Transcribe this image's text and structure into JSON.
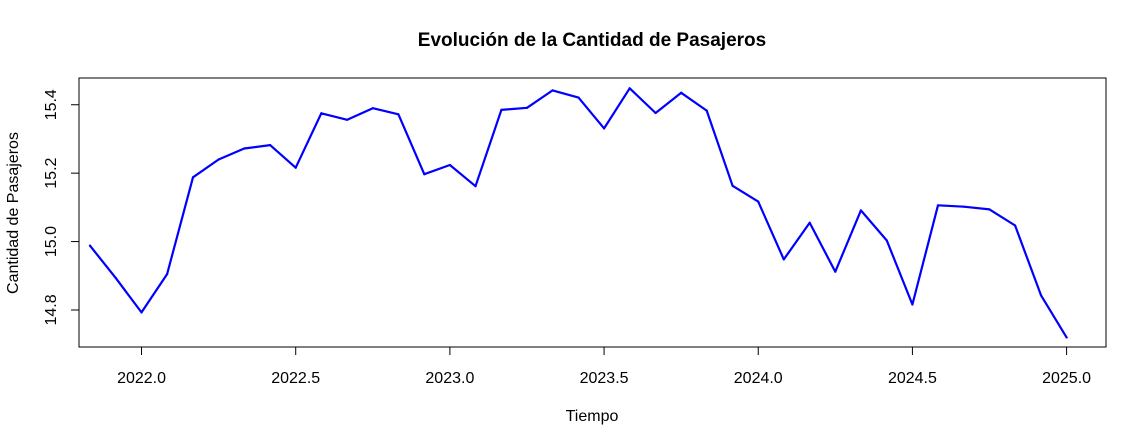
{
  "chart_data": {
    "type": "line",
    "title": "Evolución de la Cantidad de Pasajeros",
    "xlabel": "Tiempo",
    "ylabel": "Cantidad de Pasajeros",
    "xlim": [
      2021.7972,
      2025.1278
    ],
    "ylim": [
      14.6918,
      15.4782
    ],
    "xticks": [
      2022.0,
      2022.5,
      2023.0,
      2023.5,
      2024.0,
      2024.5,
      2025.0
    ],
    "xtick_labels": [
      "2022.0",
      "2022.5",
      "2023.0",
      "2023.5",
      "2024.0",
      "2024.5",
      "2025.0"
    ],
    "yticks": [
      14.8,
      15.0,
      15.2,
      15.4
    ],
    "ytick_labels": [
      "14.8",
      "15.0",
      "15.2",
      "15.4"
    ],
    "grid": false,
    "line_color": "#0000ff",
    "series": [
      {
        "x": [
          2021.833,
          2021.917,
          2022.0,
          2022.083,
          2022.167,
          2022.25,
          2022.333,
          2022.417,
          2022.5,
          2022.583,
          2022.667,
          2022.75,
          2022.833,
          2022.917,
          2023.0,
          2023.083,
          2023.167,
          2023.25,
          2023.333,
          2023.417,
          2023.5,
          2023.583,
          2023.667,
          2023.75,
          2023.833,
          2023.917,
          2024.0,
          2024.083,
          2024.167,
          2024.25,
          2024.333,
          2024.417,
          2024.5,
          2024.583,
          2024.667,
          2024.75,
          2024.833,
          2024.917,
          2025.0
        ],
        "values": [
          14.988,
          14.893,
          14.793,
          14.905,
          15.188,
          15.24,
          15.272,
          15.282,
          15.216,
          15.375,
          15.356,
          15.39,
          15.372,
          15.197,
          15.224,
          15.162,
          15.385,
          15.391,
          15.442,
          15.421,
          15.331,
          15.448,
          15.376,
          15.435,
          15.383,
          15.163,
          15.117,
          14.948,
          15.055,
          14.912,
          15.091,
          15.003,
          14.816,
          15.106,
          15.102,
          15.094,
          15.047,
          14.843,
          14.72
        ]
      }
    ]
  }
}
